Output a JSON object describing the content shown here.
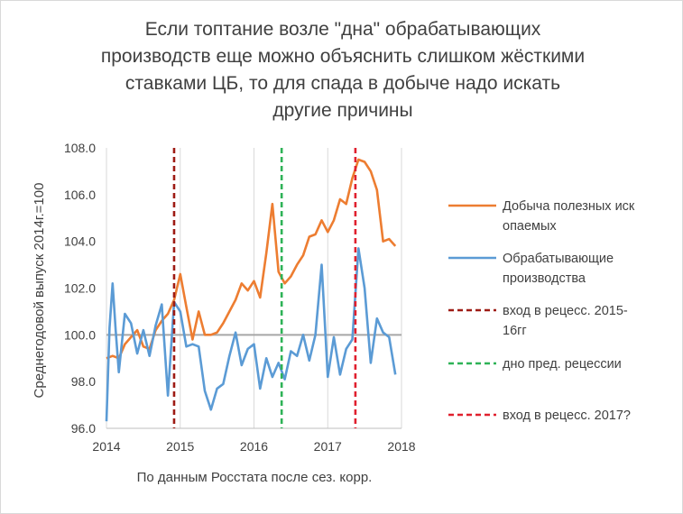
{
  "chart_data": {
    "type": "line",
    "title_lines": [
      "Если топтание возле \"дна\" обрабатывающих",
      "производств еще можно объяснить слишком жёсткими",
      "ставками ЦБ, то для спада в добыче надо искать",
      "другие причины"
    ],
    "xlabel": "По данным Росстата после сез. корр.",
    "ylabel": "Среднегодовой выпуск 2014г.=100",
    "xlim": [
      2014,
      2018
    ],
    "ylim": [
      96,
      108
    ],
    "x_ticks": [
      "2014",
      "2015",
      "2016",
      "2017",
      "2018"
    ],
    "y_ticks": [
      "96.0",
      "98.0",
      "100.0",
      "102.0",
      "104.0",
      "106.0",
      "108.0"
    ],
    "grid": "vertical",
    "legend_position": "right",
    "reference_line_y": 100,
    "series": [
      {
        "name_lines": [
          "Добыча полезных  иск",
          "опаемых"
        ],
        "color": "#ed7d31",
        "x": [
          2014.0,
          2014.083,
          2014.167,
          2014.25,
          2014.333,
          2014.417,
          2014.5,
          2014.583,
          2014.667,
          2014.75,
          2014.833,
          2014.917,
          2015.0,
          2015.083,
          2015.167,
          2015.25,
          2015.333,
          2015.417,
          2015.5,
          2015.583,
          2015.667,
          2015.75,
          2015.833,
          2015.917,
          2016.0,
          2016.083,
          2016.167,
          2016.25,
          2016.333,
          2016.417,
          2016.5,
          2016.583,
          2016.667,
          2016.75,
          2016.833,
          2016.917,
          2017.0,
          2017.083,
          2017.167,
          2017.25,
          2017.333,
          2017.417,
          2017.5,
          2017.583,
          2017.667,
          2017.75,
          2017.833,
          2017.917
        ],
        "values": [
          99.0,
          99.1,
          99.0,
          99.6,
          99.9,
          100.2,
          99.5,
          99.4,
          100.2,
          100.6,
          100.9,
          101.5,
          102.6,
          101.2,
          99.8,
          101.0,
          100.0,
          100.0,
          100.1,
          100.5,
          101.0,
          101.5,
          102.2,
          101.9,
          102.3,
          101.6,
          103.5,
          105.6,
          102.7,
          102.2,
          102.5,
          103.0,
          103.4,
          104.2,
          104.3,
          104.9,
          104.4,
          104.9,
          105.8,
          105.6,
          106.7,
          107.5,
          107.4,
          107.0,
          106.2,
          104.0,
          104.1,
          103.8
        ]
      },
      {
        "name_lines": [
          "Обрабатывающие",
          "производства"
        ],
        "color": "#5b9bd5",
        "x": [
          2014.0,
          2014.042,
          2014.083,
          2014.125,
          2014.167,
          2014.25,
          2014.333,
          2014.417,
          2014.5,
          2014.583,
          2014.667,
          2014.75,
          2014.833,
          2014.917,
          2015.0,
          2015.083,
          2015.167,
          2015.25,
          2015.333,
          2015.417,
          2015.5,
          2015.583,
          2015.667,
          2015.75,
          2015.833,
          2015.917,
          2016.0,
          2016.083,
          2016.167,
          2016.25,
          2016.333,
          2016.417,
          2016.5,
          2016.583,
          2016.667,
          2016.75,
          2016.833,
          2016.917,
          2017.0,
          2017.083,
          2017.167,
          2017.25,
          2017.333,
          2017.417,
          2017.5,
          2017.583,
          2017.667,
          2017.75,
          2017.833,
          2017.917
        ],
        "values": [
          96.3,
          100.3,
          102.2,
          100.2,
          98.4,
          100.9,
          100.5,
          99.2,
          100.2,
          99.1,
          100.4,
          101.3,
          97.4,
          101.4,
          101.0,
          99.5,
          99.6,
          99.5,
          97.6,
          96.8,
          97.7,
          97.9,
          99.1,
          100.1,
          98.7,
          99.4,
          99.6,
          97.7,
          99.0,
          98.2,
          98.8,
          98.1,
          99.3,
          99.1,
          100.0,
          98.9,
          100.0,
          103.0,
          98.2,
          99.9,
          98.3,
          99.4,
          99.8,
          103.7,
          102.0,
          98.8,
          100.7,
          100.1,
          99.9,
          98.3
        ]
      }
    ],
    "vlines": [
      {
        "name_lines": [
          "вход в рецесс. 2015-",
          "16гг"
        ],
        "x": 2014.917,
        "color": "#9e1b14",
        "dash": "dashed"
      },
      {
        "name_lines": [
          "дно пред. рецессии"
        ],
        "x": 2016.375,
        "color": "#2eb257",
        "dash": "dashed"
      },
      {
        "name_lines": [
          "вход в рецесс. 2017?"
        ],
        "x": 2017.375,
        "color": "#e0202e",
        "dash": "dashed"
      }
    ]
  }
}
